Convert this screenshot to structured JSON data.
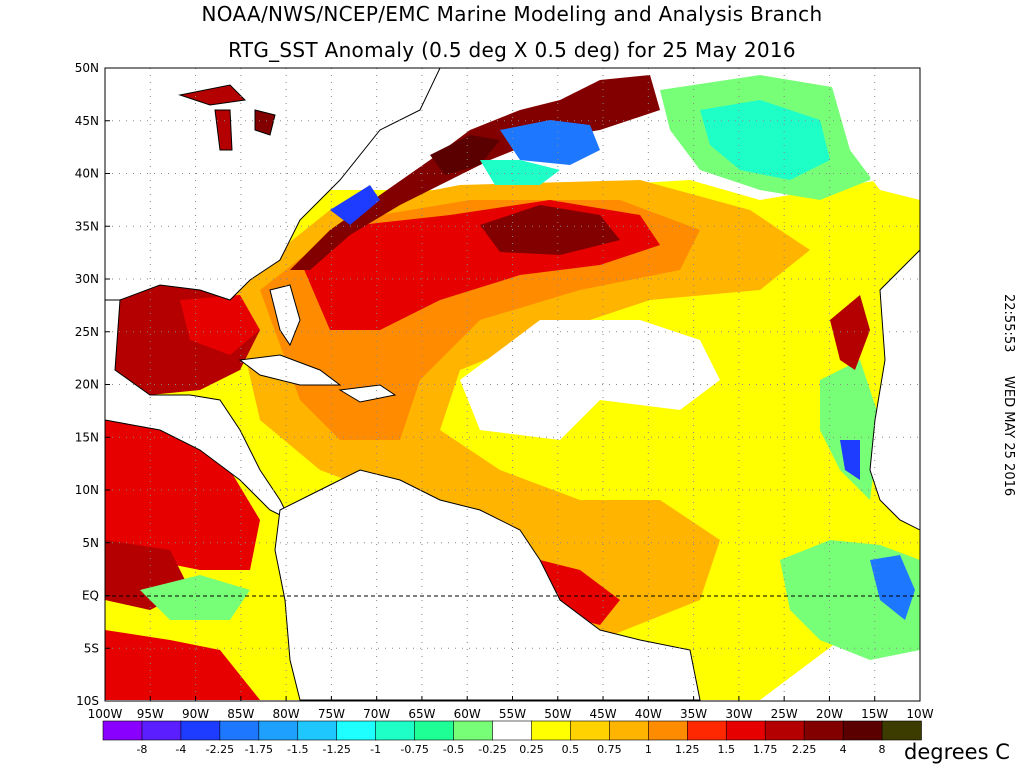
{
  "title": {
    "line1": "NOAA/NWS/NCEP/EMC Marine Modeling and Analysis Branch",
    "line2": "RTG_SST Anomaly (0.5 deg X 0.5 deg) for 25 May 2016"
  },
  "timestamp": {
    "time": "22:55:53",
    "date": "WED MAY 25 2016"
  },
  "axes": {
    "lat_labels": [
      "50N",
      "45N",
      "40N",
      "35N",
      "30N",
      "25N",
      "20N",
      "15N",
      "10N",
      "5N",
      "EQ",
      "5S",
      "10S"
    ],
    "lon_labels": [
      "100W",
      "95W",
      "90W",
      "85W",
      "80W",
      "75W",
      "70W",
      "65W",
      "60W",
      "55W",
      "50W",
      "45W",
      "40W",
      "35W",
      "30W",
      "25W",
      "20W",
      "15W",
      "10W"
    ],
    "lat_range": [
      -10,
      50
    ],
    "lon_range": [
      -100,
      -10
    ]
  },
  "legend": {
    "units": "degrees C",
    "bin_labels": [
      "-8",
      "-4",
      "-2.25",
      "-1.75",
      "-1.5",
      "-1.25",
      "-1",
      "-0.75",
      "-0.5",
      "-0.25",
      "0.25",
      "0.5",
      "0.75",
      "1",
      "1.25",
      "1.5",
      "1.75",
      "2.25",
      "4",
      "8"
    ],
    "colors": [
      "#8a00ff",
      "#5a1eff",
      "#1e3cff",
      "#1e78ff",
      "#1ea0ff",
      "#1ec8ff",
      "#1effff",
      "#1effc8",
      "#1eff96",
      "#78ff78",
      "#ffffff",
      "#ffff00",
      "#ffd200",
      "#ffb400",
      "#ff8c00",
      "#ff2800",
      "#e60000",
      "#b40000",
      "#820000",
      "#5a0000",
      "#3c3c00"
    ]
  }
}
